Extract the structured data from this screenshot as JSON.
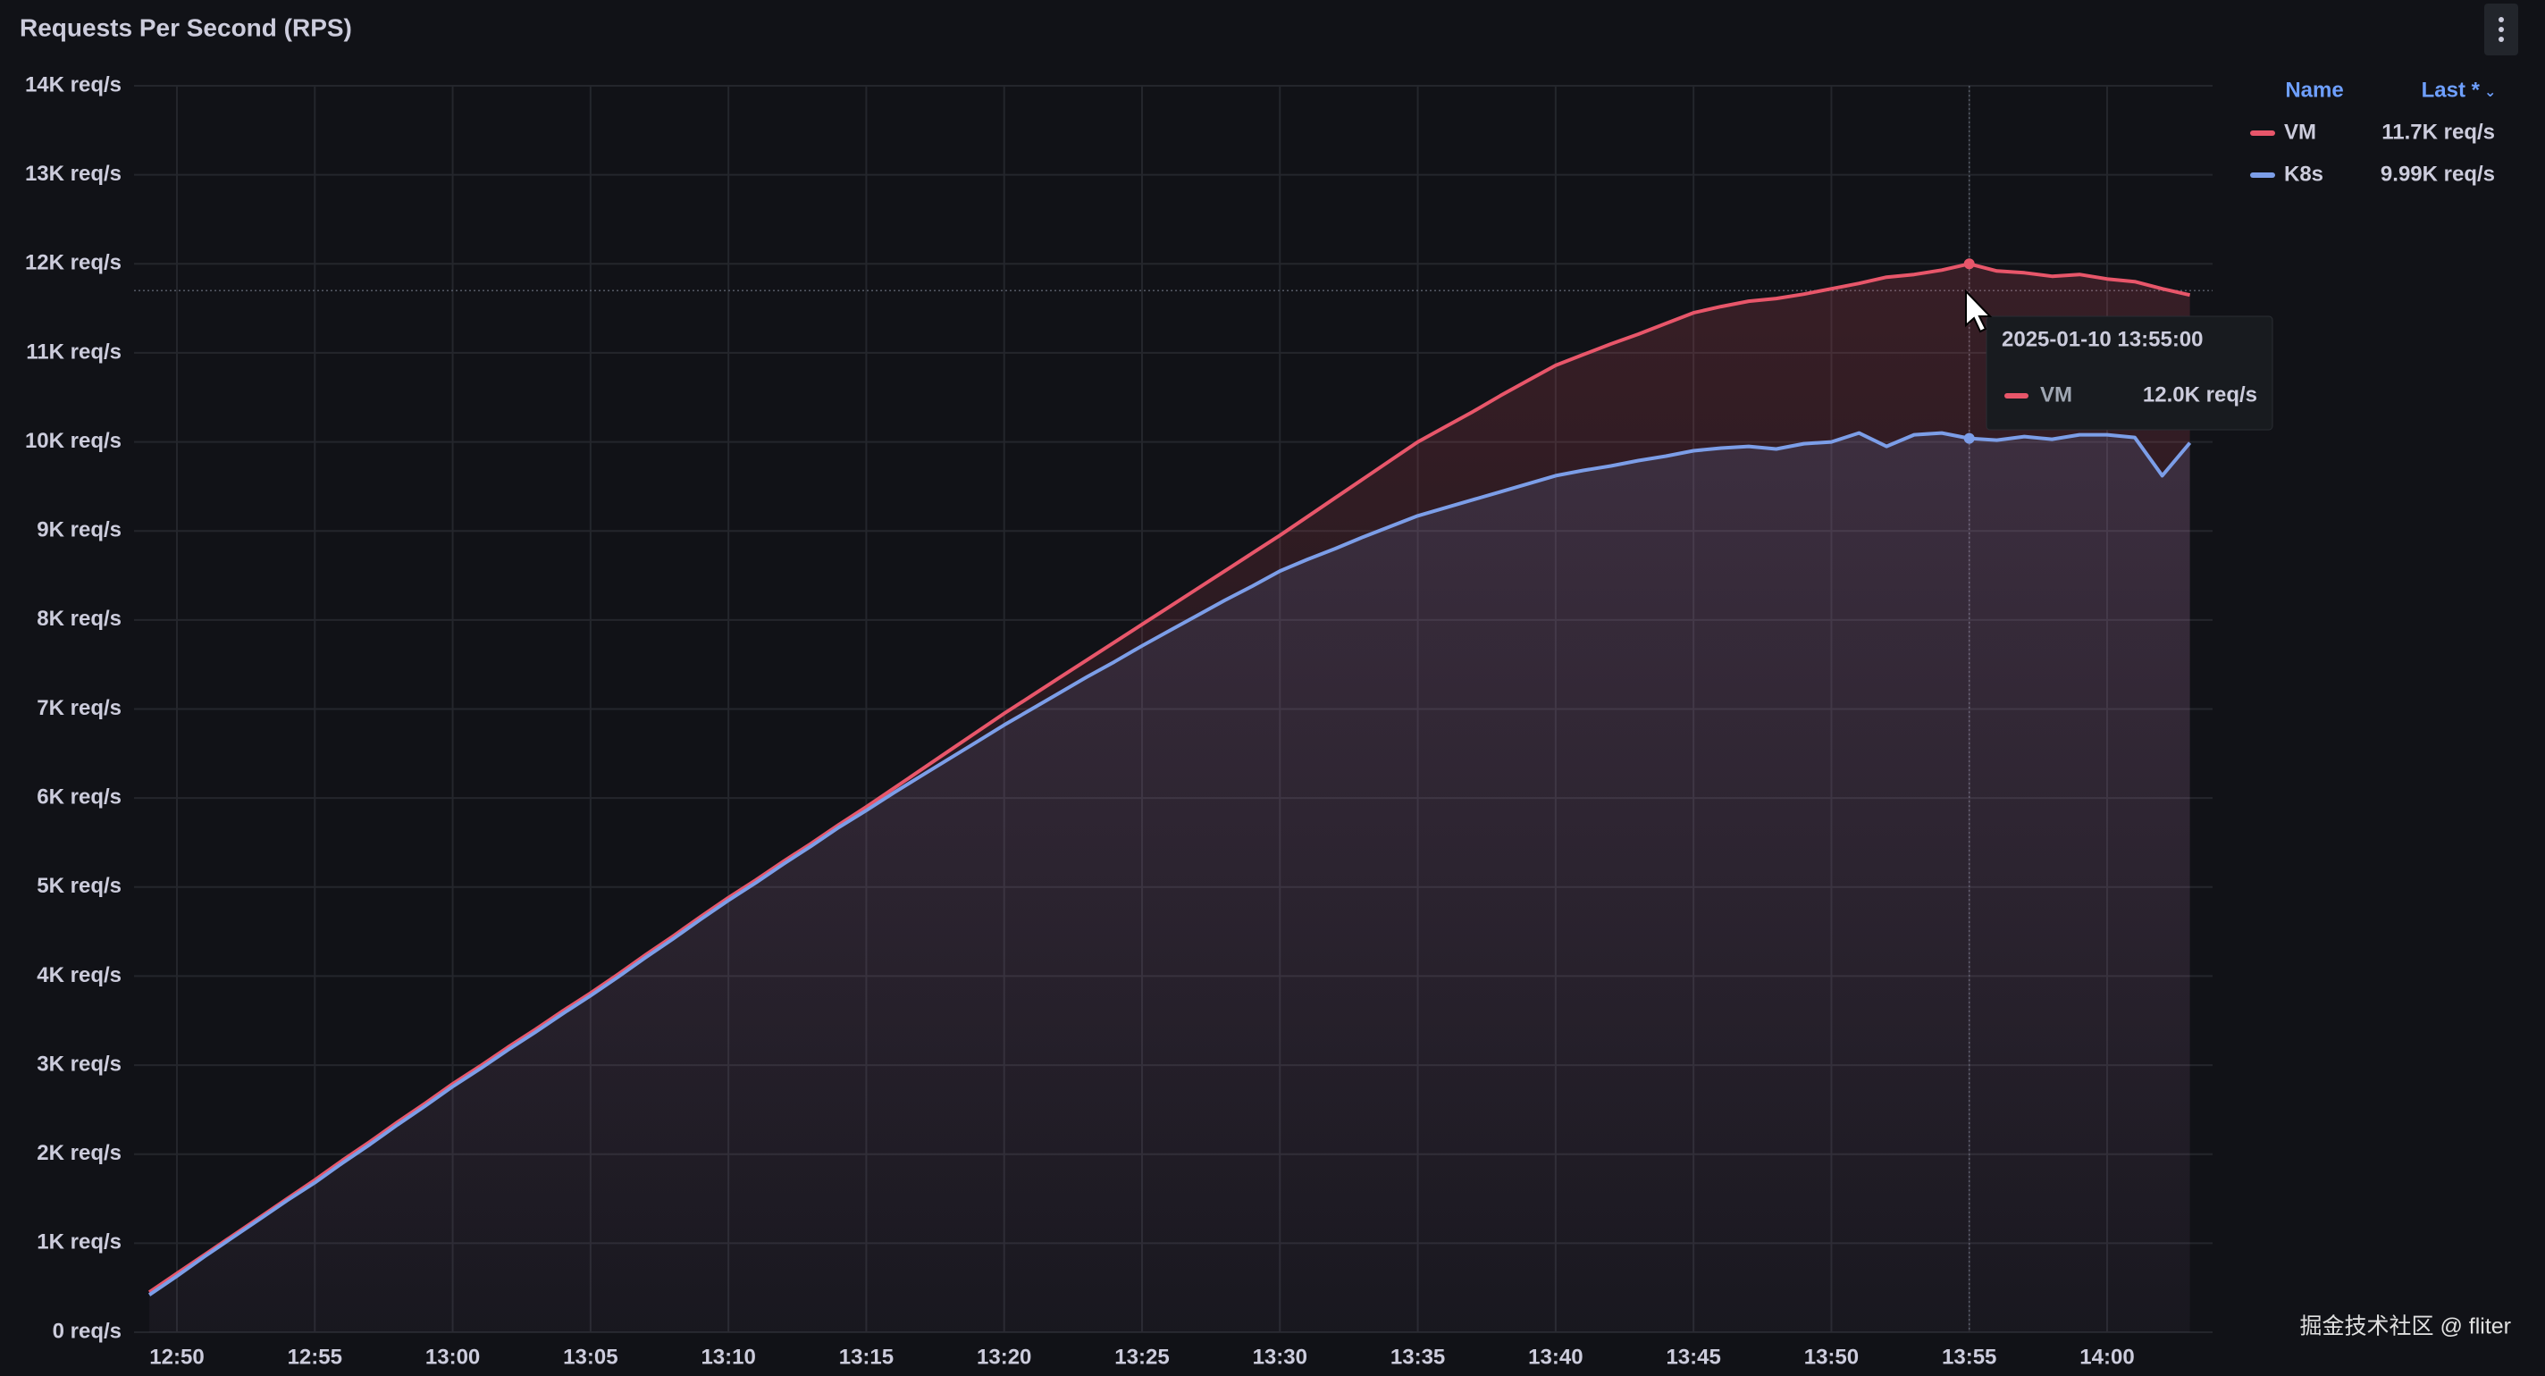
{
  "chart_data": {
    "type": "line",
    "title": "Requests Per Second (RPS)",
    "x": [
      "12:49",
      "12:50",
      "12:51",
      "12:52",
      "12:53",
      "12:54",
      "12:55",
      "12:56",
      "12:57",
      "12:58",
      "12:59",
      "13:00",
      "13:01",
      "13:02",
      "13:03",
      "13:04",
      "13:05",
      "13:06",
      "13:07",
      "13:08",
      "13:09",
      "13:10",
      "13:11",
      "13:12",
      "13:13",
      "13:14",
      "13:15",
      "13:16",
      "13:17",
      "13:18",
      "13:19",
      "13:20",
      "13:21",
      "13:22",
      "13:23",
      "13:24",
      "13:25",
      "13:26",
      "13:27",
      "13:28",
      "13:29",
      "13:30",
      "13:31",
      "13:32",
      "13:33",
      "13:34",
      "13:35",
      "13:36",
      "13:37",
      "13:38",
      "13:39",
      "13:40",
      "13:41",
      "13:42",
      "13:43",
      "13:44",
      "13:45",
      "13:46",
      "13:47",
      "13:48",
      "13:49",
      "13:50",
      "13:51",
      "13:52",
      "13:53",
      "13:54",
      "13:55",
      "13:56",
      "13:57",
      "13:58",
      "13:59",
      "14:00",
      "14:01",
      "14:02",
      "14:03"
    ],
    "series": [
      {
        "name": "VM",
        "color": "#e8566a",
        "last_label": "11.7K req/s",
        "values": [
          450,
          660,
          870,
          1080,
          1290,
          1500,
          1710,
          1930,
          2140,
          2360,
          2570,
          2790,
          2990,
          3200,
          3400,
          3610,
          3810,
          4020,
          4240,
          4450,
          4670,
          4880,
          5080,
          5290,
          5490,
          5700,
          5900,
          6110,
          6320,
          6530,
          6740,
          6950,
          7150,
          7350,
          7550,
          7750,
          7950,
          8150,
          8350,
          8550,
          8750,
          8950,
          9160,
          9370,
          9580,
          9790,
          10000,
          10170,
          10340,
          10520,
          10690,
          10860,
          10980,
          11100,
          11210,
          11330,
          11450,
          11520,
          11580,
          11610,
          11660,
          11720,
          11780,
          11850,
          11880,
          11930,
          12000,
          11920,
          11900,
          11860,
          11880,
          11830,
          11800,
          11720,
          11650
        ]
      },
      {
        "name": "K8s",
        "color": "#7c9ee8",
        "last_label": "9.99K req/s",
        "values": [
          420,
          630,
          850,
          1060,
          1270,
          1480,
          1680,
          1900,
          2110,
          2330,
          2540,
          2760,
          2960,
          3170,
          3370,
          3580,
          3780,
          3990,
          4210,
          4420,
          4640,
          4850,
          5050,
          5260,
          5460,
          5670,
          5860,
          6060,
          6250,
          6440,
          6630,
          6820,
          7000,
          7180,
          7360,
          7530,
          7710,
          7880,
          8050,
          8220,
          8380,
          8550,
          8680,
          8800,
          8930,
          9050,
          9170,
          9260,
          9350,
          9440,
          9530,
          9620,
          9680,
          9730,
          9790,
          9840,
          9900,
          9930,
          9950,
          9920,
          9980,
          10000,
          10100,
          9950,
          10080,
          10100,
          10040,
          10020,
          10060,
          10030,
          10080,
          10080,
          10050,
          9620,
          9990
        ]
      }
    ],
    "ylim": [
      0,
      14000
    ],
    "yticks": [
      {
        "value": 0,
        "label": "0 req/s"
      },
      {
        "value": 1000,
        "label": "1K req/s"
      },
      {
        "value": 2000,
        "label": "2K req/s"
      },
      {
        "value": 3000,
        "label": "3K req/s"
      },
      {
        "value": 4000,
        "label": "4K req/s"
      },
      {
        "value": 5000,
        "label": "5K req/s"
      },
      {
        "value": 6000,
        "label": "6K req/s"
      },
      {
        "value": 7000,
        "label": "7K req/s"
      },
      {
        "value": 8000,
        "label": "8K req/s"
      },
      {
        "value": 9000,
        "label": "9K req/s"
      },
      {
        "value": 10000,
        "label": "10K req/s"
      },
      {
        "value": 11000,
        "label": "11K req/s"
      },
      {
        "value": 12000,
        "label": "12K req/s"
      },
      {
        "value": 13000,
        "label": "13K req/s"
      },
      {
        "value": 14000,
        "label": "14K req/s"
      }
    ],
    "xticks": [
      "12:50",
      "12:55",
      "13:00",
      "13:05",
      "13:10",
      "13:15",
      "13:20",
      "13:25",
      "13:30",
      "13:35",
      "13:40",
      "13:45",
      "13:50",
      "13:55",
      "14:00"
    ],
    "grid": true,
    "legend_headers": [
      "Name",
      "Last *"
    ],
    "tooltip": {
      "time": "2025-01-10 13:55:00",
      "series": "VM",
      "value_label": "12.0K req/s"
    },
    "watermark": "掘金技术社区 @ fliter"
  }
}
